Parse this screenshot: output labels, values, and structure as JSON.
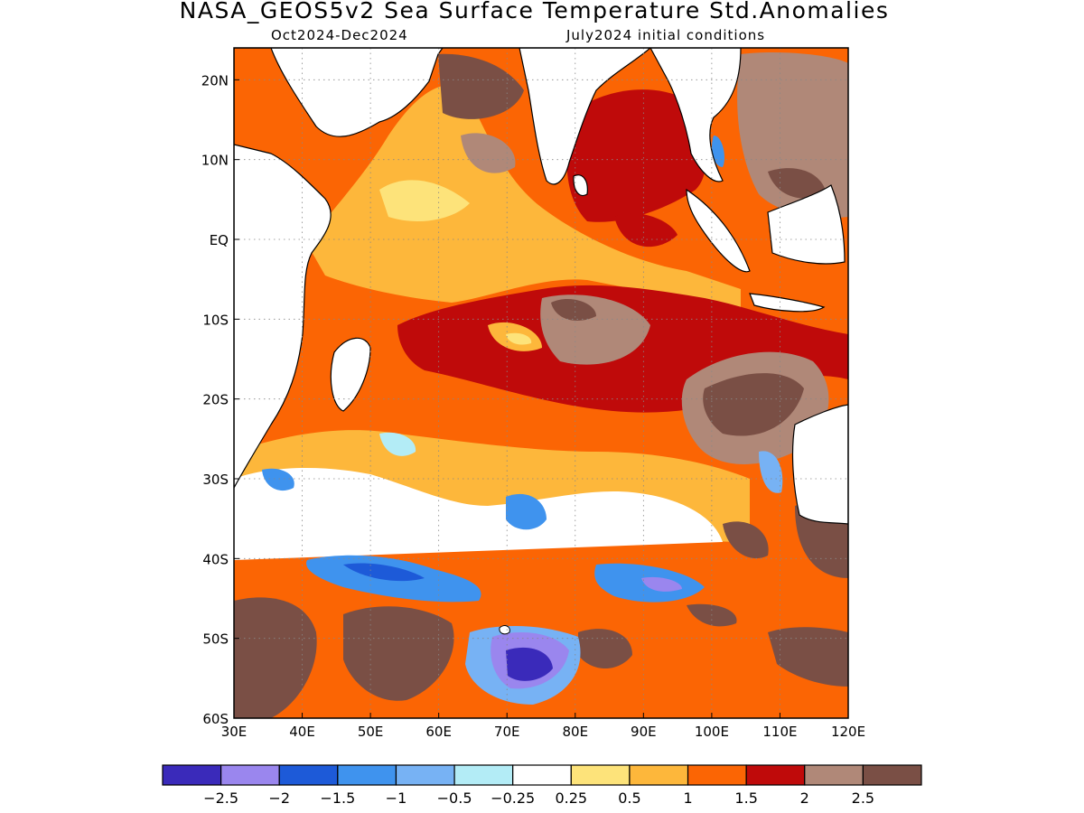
{
  "title": "NASA_GEOS5v2 Sea Surface Temperature Std.Anomalies",
  "subtitle_left": "Oct2024-Dec2024",
  "subtitle_right": "July2024 initial conditions",
  "map": {
    "region": "Indian Ocean",
    "lon_range": [
      30,
      120
    ],
    "lat_range": [
      -60,
      24
    ],
    "lon_ticks": [
      "30E",
      "40E",
      "50E",
      "60E",
      "70E",
      "80E",
      "90E",
      "100E",
      "110E",
      "120E"
    ],
    "lat_ticks": [
      "20N",
      "10N",
      "EQ",
      "10S",
      "20S",
      "30S",
      "40S",
      "50S",
      "60S"
    ],
    "grid": "dotted",
    "land_color": "#ffffff"
  },
  "colorbar": {
    "colors": [
      "#3a2aba",
      "#9a86ee",
      "#1d5ad8",
      "#3f93ee",
      "#77b2f4",
      "#b3ecf6",
      "#ffffff",
      "#fde37a",
      "#fdb73b",
      "#fb6504",
      "#bf0a0a",
      "#b08878",
      "#7a4f45"
    ],
    "labels": [
      "-2.5",
      "-2",
      "-1.5",
      "-1",
      "-0.5",
      "-0.25",
      "0.25",
      "0.5",
      "1",
      "1.5",
      "2",
      "2.5"
    ]
  }
}
